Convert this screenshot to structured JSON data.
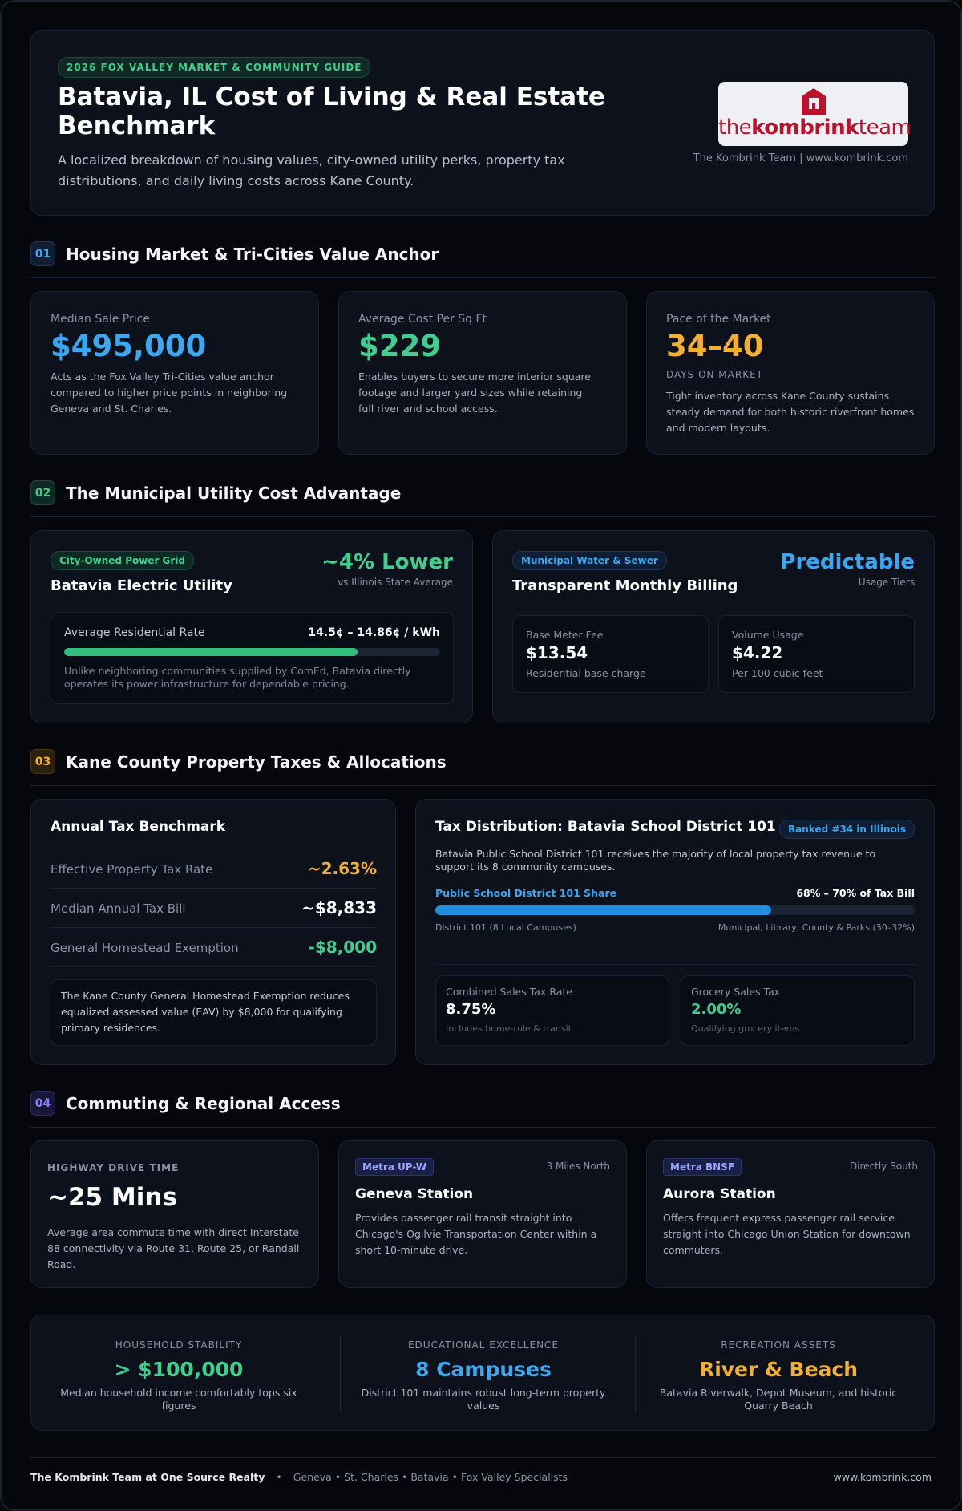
{
  "header": {
    "guide_label": "2026 FOX VALLEY MARKET & COMMUNITY GUIDE",
    "title": "Batavia, IL Cost of Living & Real Estate Benchmark",
    "subtitle": "A localized breakdown of housing values, city-owned utility perks, property tax distributions, and daily living costs across Kane County.",
    "logo_text_light": "the",
    "logo_text_bold": "kombrink",
    "logo_text_tail": "team",
    "logo_caption": "The Kombrink Team | www.kombrink.com"
  },
  "sections": {
    "housing": {
      "num": "01",
      "title": "Housing Market & Tri-Cities Value Anchor"
    },
    "utility": {
      "num": "02",
      "title": "The Municipal Utility Cost Advantage"
    },
    "tax": {
      "num": "03",
      "title": "Kane County Property Taxes & Allocations"
    },
    "commute": {
      "num": "04",
      "title": "Commuting & Regional Access"
    }
  },
  "housing": {
    "median": {
      "label": "Median Sale Price",
      "value": "$495,000",
      "desc": "Acts as the Fox Valley Tri-Cities value anchor compared to higher price points in neighboring Geneva and St. Charles."
    },
    "sqft": {
      "label": "Average Cost Per Sq Ft",
      "value": "$229",
      "desc": "Enables buyers to secure more interior square footage and larger yard sizes while retaining full river and school access."
    },
    "pace": {
      "label": "Pace of the Market",
      "value": "34–40",
      "unit": "DAYS ON MARKET",
      "desc": "Tight inventory across Kane County sustains steady demand for both historic riverfront homes and modern layouts."
    }
  },
  "utility": {
    "electric": {
      "pill": "City-Owned Power Grid",
      "title": "Batavia Electric Utility",
      "stat": "~4% Lower",
      "stat_sub": "vs Illinois State Average",
      "rate_label": "Average Residential Rate",
      "rate_value": "14.5¢ – 14.86¢ / kWh",
      "rate_fill": 0.78,
      "note": "Unlike neighboring communities supplied by ComEd, Batavia directly operates its power infrastructure for dependable pricing."
    },
    "water": {
      "pill": "Municipal Water & Sewer",
      "title": "Transparent Monthly Billing",
      "stat": "Predictable",
      "stat_sub": "Usage Tiers",
      "base_label": "Base Meter Fee",
      "base_value": "$13.54",
      "base_note": "Residential base charge",
      "vol_label": "Volume Usage",
      "vol_value": "$4.22",
      "vol_note": "Per 100 cubic feet"
    }
  },
  "tax": {
    "benchmark_title": "Annual Tax Benchmark",
    "rows": [
      {
        "label": "Effective Property Tax Rate",
        "value": "~2.63%"
      },
      {
        "label": "Median Annual Tax Bill",
        "value": "~$8,833"
      },
      {
        "label": "General Homestead Exemption",
        "value": "-$8,000"
      }
    ],
    "exemption_note": "The Kane County General Homestead Exemption reduces equalized assessed value (EAV) by $8,000 for qualifying primary residences.",
    "distribution": {
      "title": "Tax Distribution: Batavia School District 101",
      "rank": "Ranked #34 in Illinois",
      "desc": "Batavia Public School District 101 receives the majority of local property tax revenue to support its 8 community campuses.",
      "share_label": "Public School District 101 Share",
      "share_value": "68% – 70% of Tax Bill",
      "share_fill": 0.7,
      "left_caption": "District 101 (8 Local Campuses)",
      "right_caption": "Municipal, Library, County & Parks (30–32%)"
    },
    "sales": {
      "label": "Combined Sales Tax Rate",
      "value": "8.75%",
      "note": "Includes home-rule & transit"
    },
    "grocery": {
      "label": "Grocery Sales Tax",
      "value": "2.00%",
      "note": "Qualifying grocery items"
    }
  },
  "commute": {
    "highway": {
      "caption": "HIGHWAY DRIVE TIME",
      "value": "~25 Mins",
      "desc": "Average area commute time with direct Interstate 88 connectivity via Route 31, Route 25, or Randall Road."
    },
    "geneva": {
      "pill": "Metra UP-W",
      "distance": "3 Miles North",
      "title": "Geneva Station",
      "desc": "Provides passenger rail transit straight into Chicago's Ogilvie Transportation Center within a short 10-minute drive."
    },
    "aurora": {
      "pill": "Metra BNSF",
      "distance": "Directly South",
      "title": "Aurora Station",
      "desc": "Offers frequent express passenger rail service straight into Chicago Union Station for downtown commuters."
    }
  },
  "summary": [
    {
      "caption": "HOUSEHOLD STABILITY",
      "value": "> $100,000",
      "desc": "Median household income comfortably tops six figures"
    },
    {
      "caption": "EDUCATIONAL EXCELLENCE",
      "value": "8 Campuses",
      "desc": "District 101 maintains robust long-term property values"
    },
    {
      "caption": "RECREATION ASSETS",
      "value": "River & Beach",
      "desc": "Batavia Riverwalk, Depot Museum, and historic Quarry Beach"
    }
  ],
  "footer": {
    "brand": "The Kombrink Team at One Source Realty",
    "separator": "•",
    "tagline": "Geneva • St. Charles • Batavia • Fox Valley Specialists",
    "url": "www.kombrink.com"
  },
  "colors": {
    "blue": "#3ba7f0",
    "green": "#3ecf8e",
    "amber": "#f2b02e",
    "brand_red": "#b8122d"
  }
}
